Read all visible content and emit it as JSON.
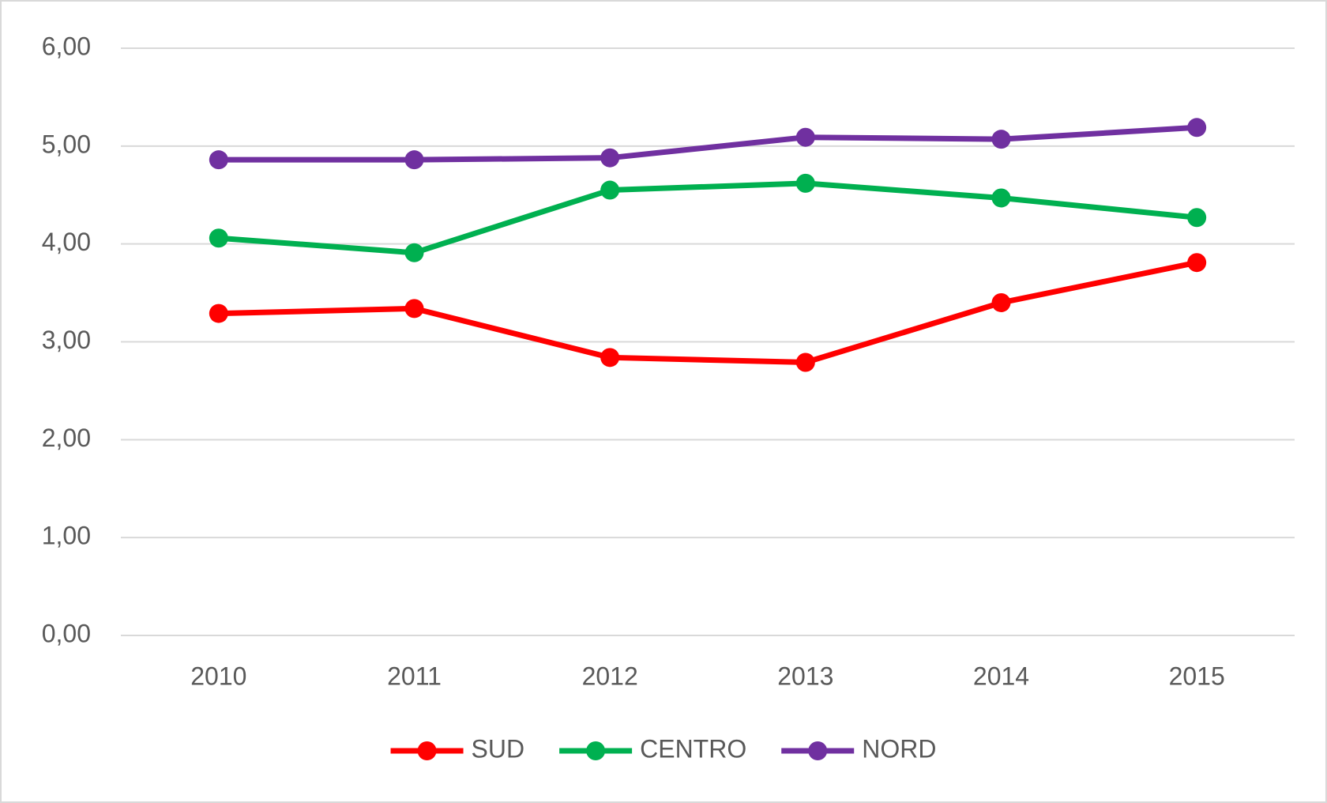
{
  "chart_data": {
    "type": "line",
    "categories": [
      "2010",
      "2011",
      "2012",
      "2013",
      "2014",
      "2015"
    ],
    "series": [
      {
        "name": "SUD",
        "color": "#ff0000",
        "values": [
          3.29,
          3.34,
          2.84,
          2.79,
          3.4,
          3.81
        ]
      },
      {
        "name": "CENTRO",
        "color": "#00b050",
        "values": [
          4.06,
          3.91,
          4.55,
          4.62,
          4.47,
          4.27
        ]
      },
      {
        "name": "NORD",
        "color": "#7030a0",
        "values": [
          4.86,
          4.86,
          4.88,
          5.09,
          5.07,
          5.19
        ]
      }
    ],
    "ylim": [
      0,
      6
    ],
    "yticks": [
      {
        "value": 0,
        "label": "0,00"
      },
      {
        "value": 1,
        "label": "1,00"
      },
      {
        "value": 2,
        "label": "2,00"
      },
      {
        "value": 3,
        "label": "3,00"
      },
      {
        "value": 4,
        "label": "4,00"
      },
      {
        "value": 5,
        "label": "5,00"
      },
      {
        "value": 6,
        "label": "6,00"
      }
    ],
    "grid": true,
    "legend": "bottom"
  }
}
